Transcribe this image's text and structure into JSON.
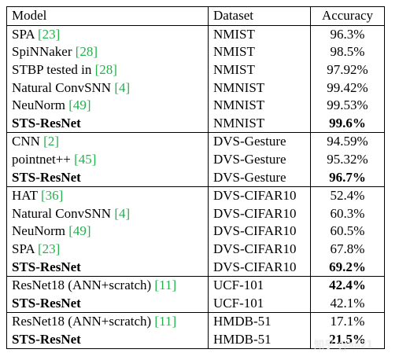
{
  "table": {
    "headers": [
      "Model",
      "Dataset",
      "Accuracy"
    ],
    "groups": [
      [
        {
          "model": "SPA ",
          "ref": "[23]",
          "dataset": "NMIST",
          "accuracy": "96.3%",
          "model_bold": false,
          "acc_bold": false
        },
        {
          "model": "SpiNNaker ",
          "ref": "[28]",
          "dataset": "NMIST",
          "accuracy": "98.5%",
          "model_bold": false,
          "acc_bold": false
        },
        {
          "model": "STBP tested in ",
          "ref": "[28]",
          "dataset": "NMIST",
          "accuracy": "97.92%",
          "model_bold": false,
          "acc_bold": false
        },
        {
          "model": "Natural ConvSNN ",
          "ref": "[4]",
          "dataset": "NMNIST",
          "accuracy": "99.42%",
          "model_bold": false,
          "acc_bold": false
        },
        {
          "model": "NeuNorm ",
          "ref": "[49]",
          "dataset": "NMNIST",
          "accuracy": "99.53%",
          "model_bold": false,
          "acc_bold": false
        },
        {
          "model": "STS-ResNet",
          "ref": "",
          "dataset": "NMNIST",
          "accuracy": "99.6%",
          "model_bold": true,
          "acc_bold": true
        }
      ],
      [
        {
          "model": "CNN ",
          "ref": "[2]",
          "dataset": "DVS-Gesture",
          "accuracy": "94.59%",
          "model_bold": false,
          "acc_bold": false
        },
        {
          "model": "pointnet++ ",
          "ref": "[45]",
          "dataset": "DVS-Gesture",
          "accuracy": "95.32%",
          "model_bold": false,
          "acc_bold": false
        },
        {
          "model": "STS-ResNet",
          "ref": "",
          "dataset": "DVS-Gesture",
          "accuracy": "96.7%",
          "model_bold": true,
          "acc_bold": true
        }
      ],
      [
        {
          "model": "HAT ",
          "ref": "[36]",
          "dataset": "DVS-CIFAR10",
          "accuracy": "52.4%",
          "model_bold": false,
          "acc_bold": false
        },
        {
          "model": "Natural ConvSNN ",
          "ref": "[4]",
          "dataset": "DVS-CIFAR10",
          "accuracy": "60.3%",
          "model_bold": false,
          "acc_bold": false
        },
        {
          "model": "NeuNorm ",
          "ref": "[49]",
          "dataset": "DVS-CIFAR10",
          "accuracy": "60.5%",
          "model_bold": false,
          "acc_bold": false
        },
        {
          "model": "SPA ",
          "ref": "[23]",
          "dataset": "DVS-CIFAR10",
          "accuracy": "67.8%",
          "model_bold": false,
          "acc_bold": false
        },
        {
          "model": "STS-ResNet",
          "ref": "",
          "dataset": "DVS-CIFAR10",
          "accuracy": "69.2%",
          "model_bold": true,
          "acc_bold": true
        }
      ],
      [
        {
          "model": "ResNet18 (ANN+scratch) ",
          "ref": "[11]",
          "dataset": "UCF-101",
          "accuracy": "42.4%",
          "model_bold": false,
          "acc_bold": true
        },
        {
          "model": "STS-ResNet",
          "ref": "",
          "dataset": "UCF-101",
          "accuracy": "42.1%",
          "model_bold": true,
          "acc_bold": false
        }
      ],
      [
        {
          "model": "ResNet18 (ANN+scratch) ",
          "ref": "[11]",
          "dataset": "HMDB-51",
          "accuracy": "17.1%",
          "model_bold": false,
          "acc_bold": false
        },
        {
          "model": "STS-ResNet",
          "ref": "",
          "dataset": "HMDB-51",
          "accuracy": "21.5%",
          "model_bold": true,
          "acc_bold": true
        }
      ]
    ]
  },
  "watermark": "知乎 @ali21"
}
